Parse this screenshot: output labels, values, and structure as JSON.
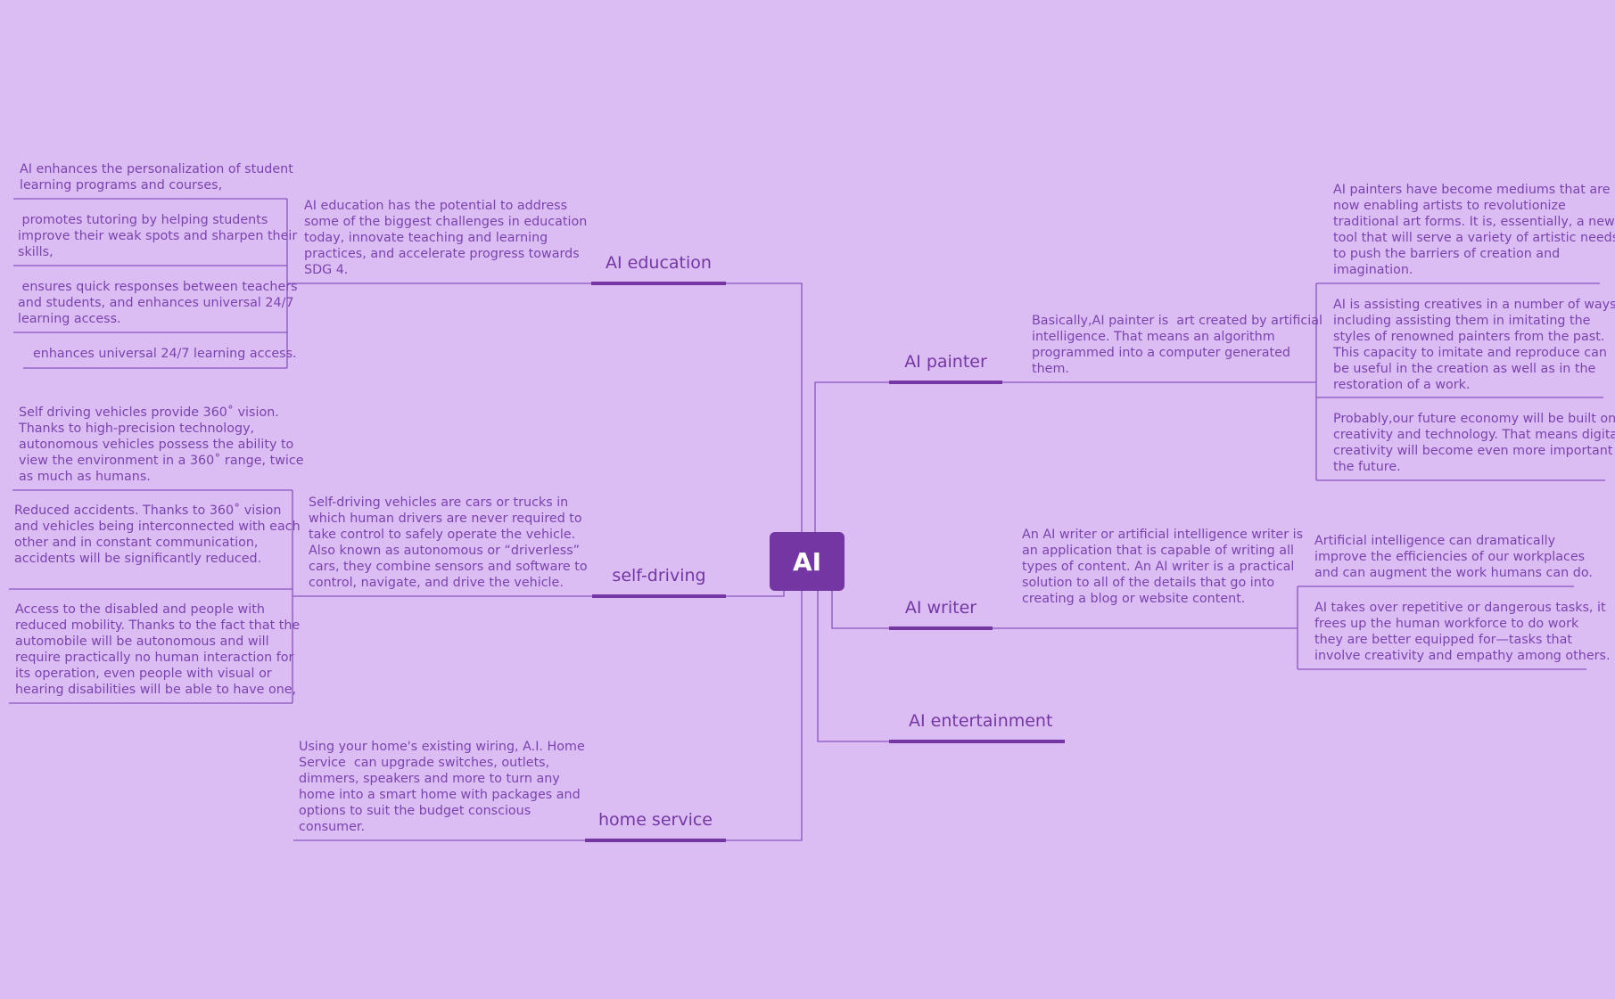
{
  "colors": {
    "background": "#dbbdf4",
    "root_fill": "#7436a3",
    "branch_bar": "#7436a3",
    "line": "#8a55bd",
    "text": "#7a43ad"
  },
  "root": {
    "label": "AI"
  },
  "branches": {
    "education": {
      "label": "AI education"
    },
    "self_driving": {
      "label": "self-driving"
    },
    "home_service": {
      "label": "home service"
    },
    "painter": {
      "label": "AI painter"
    },
    "writer": {
      "label": "AI writer"
    },
    "entertainment": {
      "label": "AI  entertainment"
    }
  },
  "notes": {
    "education_summary": [
      "AI education has the potential to address",
      "some of the biggest challenges in education",
      "today, innovate teaching and learning",
      "practices, and accelerate progress towards",
      "SDG 4."
    ],
    "education_1": [
      "AI enhances the personalization of student",
      "learning programs and courses,"
    ],
    "education_2": [
      " promotes tutoring by helping students",
      "improve their weak spots and sharpen their",
      "skills,"
    ],
    "education_3": [
      " ensures quick responses between teachers",
      "and students, and enhances universal 24/7",
      "learning access."
    ],
    "education_4": [
      "enhances universal 24/7 learning access."
    ],
    "driving_summary": [
      "Self-driving vehicles are cars or trucks in",
      "which human drivers are never required to",
      "take control to safely operate the vehicle.",
      "Also known as autonomous or “driverless”",
      "cars, they combine sensors and software to",
      "control, navigate, and drive the vehicle."
    ],
    "driving_1": [
      "Self driving vehicles provide 360˚ vision.",
      "Thanks to high-precision technology,",
      "autonomous vehicles possess the ability to",
      "view the environment in a 360˚ range, twice",
      "as much as humans."
    ],
    "driving_2": [
      "Reduced accidents. Thanks to 360˚ vision",
      "and vehicles being interconnected with each",
      "other and in constant communication,",
      "accidents will be significantly reduced."
    ],
    "driving_3": [
      "Access to the disabled and people with",
      "reduced mobility. Thanks to the fact that the",
      "automobile will be autonomous and will",
      "require practically no human interaction for",
      "its operation, even people with visual or",
      "hearing disabilities will be able to have one,"
    ],
    "home_summary": [
      "Using your home's existing wiring, A.I. Home",
      "Service  can upgrade switches, outlets,",
      "dimmers, speakers and more to turn any",
      "home into a smart home with packages and",
      "options to suit the budget conscious",
      "consumer."
    ],
    "painter_summary": [
      "Basically,AI painter is  art created by artificial",
      "intelligence. That means an algorithm",
      "programmed into a computer generated",
      "them."
    ],
    "painter_1": [
      "AI painters have become mediums that are",
      "now enabling artists to revolutionize",
      "traditional art forms. It is, essentially, a new",
      "tool that will serve a variety of artistic needs",
      "to push the barriers of creation and",
      "imagination."
    ],
    "painter_2": [
      "AI is assisting creatives in a number of ways,",
      "including assisting them in imitating the",
      "styles of renowned painters from the past.",
      "This capacity to imitate and reproduce can",
      "be useful in the creation as well as in the",
      "restoration of a work."
    ],
    "painter_3": [
      "Probably,our future economy will be built on",
      "creativity and technology. That means digital",
      "creativity will become even more important in",
      "the future."
    ],
    "writer_summary": [
      "An AI writer or artificial intelligence writer is",
      "an application that is capable of writing all",
      "types of content. An AI writer is a practical",
      "solution to all of the details that go into",
      "creating a blog or website content."
    ],
    "writer_1": [
      "Artificial intelligence can dramatically",
      "improve the efficiencies of our workplaces",
      "and can augment the work humans can do."
    ],
    "writer_2": [
      "AI takes over repetitive or dangerous tasks, it",
      "frees up the human workforce to do work",
      "they are better equipped for—tasks that",
      "involve creativity and empathy among others."
    ]
  }
}
